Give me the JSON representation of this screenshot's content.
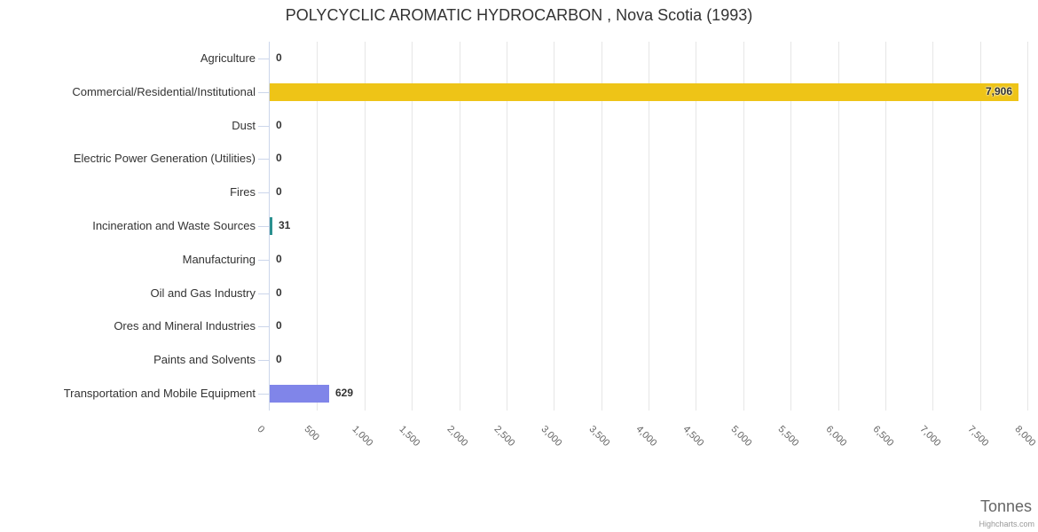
{
  "chart_data": {
    "type": "bar",
    "orientation": "horizontal",
    "title": "POLYCYCLIC AROMATIC HYDROCARBON , Nova Scotia (1993)",
    "categories": [
      "Agriculture",
      "Commercial/Residential/Institutional",
      "Dust",
      "Electric Power Generation (Utilities)",
      "Fires",
      "Incineration and Waste Sources",
      "Manufacturing",
      "Oil and Gas Industry",
      "Ores and Mineral Industries",
      "Paints and Solvents",
      "Transportation and Mobile Equipment"
    ],
    "values": [
      0,
      7906,
      0,
      0,
      0,
      31,
      0,
      0,
      0,
      0,
      629
    ],
    "value_labels": [
      "0",
      "7,906",
      "0",
      "0",
      "0",
      "31",
      "0",
      "0",
      "0",
      "0",
      "629"
    ],
    "point_colors": [
      null,
      "#eec417",
      null,
      null,
      null,
      "#2b908f",
      null,
      null,
      null,
      null,
      "#8085e9"
    ],
    "xlabel": "Tonnes",
    "xlim": [
      0,
      8000
    ],
    "tick_interval": 500,
    "x_tick_labels": [
      "0",
      "500",
      "1,000",
      "1,500",
      "2,000",
      "2,500",
      "3,000",
      "3,500",
      "4,000",
      "4,500",
      "5,000",
      "5,500",
      "6,000",
      "6,500",
      "7,000",
      "7,500",
      "8,000"
    ],
    "grid": true,
    "legend": false
  },
  "colors": {
    "axis_line": "#ccd6eb",
    "grid_line": "#e6e6e6",
    "title_text": "#333333",
    "category_label": "#333333",
    "tick_label": "#666666",
    "value_label": "#333333",
    "axis_title": "#666666",
    "credit": "#999999"
  },
  "credits": {
    "label": "Highcharts.com"
  }
}
